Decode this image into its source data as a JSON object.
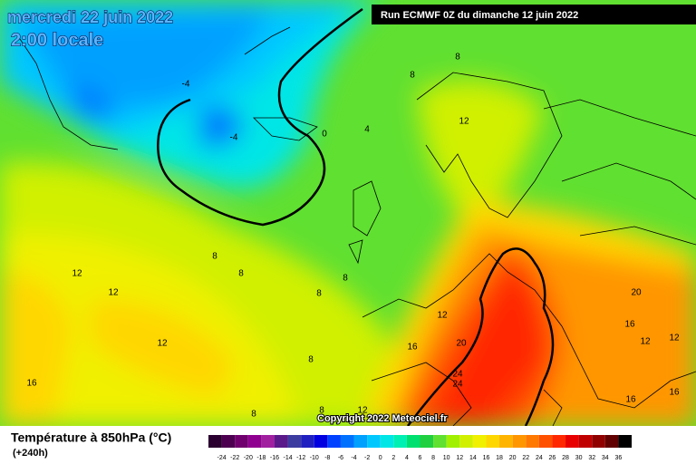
{
  "header": {
    "date": "mercredi 22 juin 2022",
    "time": "2:00 locale",
    "run": "Run ECMWF 0Z du dimanche 12 juin 2022"
  },
  "map": {
    "copyright": "Copyright 2022 Meteociel.fr",
    "contour_labels": [
      -4,
      -4,
      0,
      4,
      8,
      8,
      12,
      8,
      8,
      8,
      8,
      12,
      12,
      12,
      12,
      16,
      20,
      24,
      24,
      20,
      16,
      12,
      12,
      16,
      16,
      8,
      8,
      8,
      12,
      16
    ]
  },
  "legend": {
    "title": "Température à 850hPa (°C)",
    "lead": "(+240h)",
    "ticks": [
      -24,
      -22,
      -20,
      -18,
      -16,
      -14,
      -12,
      -10,
      -8,
      -6,
      -4,
      -2,
      0,
      2,
      4,
      6,
      8,
      10,
      12,
      14,
      16,
      18,
      20,
      22,
      24,
      26,
      28,
      30,
      32,
      34,
      36
    ],
    "colors": [
      "#2b0030",
      "#4d0050",
      "#70006e",
      "#900090",
      "#a020a0",
      "#5a1a8a",
      "#3c3ca0",
      "#2020c0",
      "#0000e0",
      "#0040ff",
      "#0070ff",
      "#00a0ff",
      "#00c8ff",
      "#00e6e6",
      "#00f0b4",
      "#00e070",
      "#20d040",
      "#60e030",
      "#a0f000",
      "#d0f000",
      "#f0f000",
      "#ffd700",
      "#ffb400",
      "#ff9600",
      "#ff7800",
      "#ff5000",
      "#ff2800",
      "#e80000",
      "#c00000",
      "#900000",
      "#600000",
      "#000000"
    ]
  }
}
